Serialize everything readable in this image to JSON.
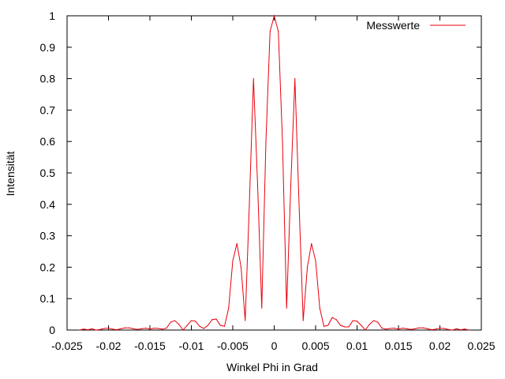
{
  "chart_data": {
    "type": "line",
    "title": "",
    "xlabel": "Winkel Phi in Grad",
    "ylabel": "Intensität",
    "xlim": [
      -0.025,
      0.025
    ],
    "ylim": [
      0,
      1
    ],
    "grid": false,
    "legend_position": "top-right",
    "x_ticks": [
      "-0.025",
      "-0.02",
      "-0.015",
      "-0.01",
      "-0.005",
      "0",
      "0.005",
      "0.01",
      "0.015",
      "0.02",
      "0.025"
    ],
    "y_ticks": [
      "0",
      "0.1",
      "0.2",
      "0.3",
      "0.4",
      "0.5",
      "0.6",
      "0.7",
      "0.8",
      "0.9",
      "1"
    ],
    "series": [
      {
        "name": "Messwerte",
        "color": "#e8000b",
        "x": [
          -0.0235,
          -0.023,
          -0.0225,
          -0.022,
          -0.0215,
          -0.021,
          -0.0205,
          -0.02,
          -0.0195,
          -0.019,
          -0.0185,
          -0.018,
          -0.0175,
          -0.017,
          -0.0165,
          -0.016,
          -0.0155,
          -0.015,
          -0.0145,
          -0.014,
          -0.0135,
          -0.013,
          -0.0125,
          -0.012,
          -0.0115,
          -0.011,
          -0.0105,
          -0.01,
          -0.0095,
          -0.009,
          -0.0085,
          -0.008,
          -0.0075,
          -0.007,
          -0.0065,
          -0.006,
          -0.0055,
          -0.005,
          -0.0045,
          -0.004,
          -0.0035,
          -0.003,
          -0.0025,
          -0.002,
          -0.0015,
          -0.001,
          -0.0005,
          0,
          0.0005,
          0.001,
          0.0015,
          0.002,
          0.0025,
          0.003,
          0.0035,
          0.004,
          0.0045,
          0.005,
          0.0055,
          0.006,
          0.0065,
          0.007,
          0.0075,
          0.008,
          0.0085,
          0.009,
          0.0095,
          0.01,
          0.0105,
          0.011,
          0.0115,
          0.012,
          0.0125,
          0.013,
          0.0135,
          0.014,
          0.0145,
          0.015,
          0.0155,
          0.016,
          0.0165,
          0.017,
          0.0175,
          0.018,
          0.0185,
          0.019,
          0.0195,
          0.02,
          0.0205,
          0.021,
          0.0215,
          0.022,
          0.0225,
          0.023,
          0.0235
        ],
        "y": [
          0.0,
          0.003,
          0.001,
          0.004,
          0.0,
          0.002,
          0.005,
          0.006,
          0.003,
          0.001,
          0.004,
          0.007,
          0.007,
          0.004,
          0.002,
          0.004,
          0.006,
          0.003,
          0.006,
          0.005,
          0.003,
          0.006,
          0.025,
          0.03,
          0.018,
          0.0,
          0.015,
          0.03,
          0.028,
          0.012,
          0.005,
          0.015,
          0.033,
          0.035,
          0.015,
          0.012,
          0.07,
          0.22,
          0.275,
          0.2,
          0.03,
          0.4,
          0.8,
          0.46,
          0.07,
          0.6,
          0.95,
          1.0,
          0.95,
          0.6,
          0.07,
          0.46,
          0.8,
          0.4,
          0.03,
          0.2,
          0.275,
          0.22,
          0.07,
          0.012,
          0.015,
          0.04,
          0.033,
          0.015,
          0.01,
          0.01,
          0.03,
          0.028,
          0.015,
          0.0,
          0.018,
          0.03,
          0.025,
          0.006,
          0.003,
          0.005,
          0.006,
          0.003,
          0.006,
          0.004,
          0.002,
          0.004,
          0.007,
          0.007,
          0.004,
          0.001,
          0.003,
          0.006,
          0.005,
          0.002,
          0.0,
          0.004,
          0.001,
          0.003,
          0.0
        ]
      }
    ]
  }
}
